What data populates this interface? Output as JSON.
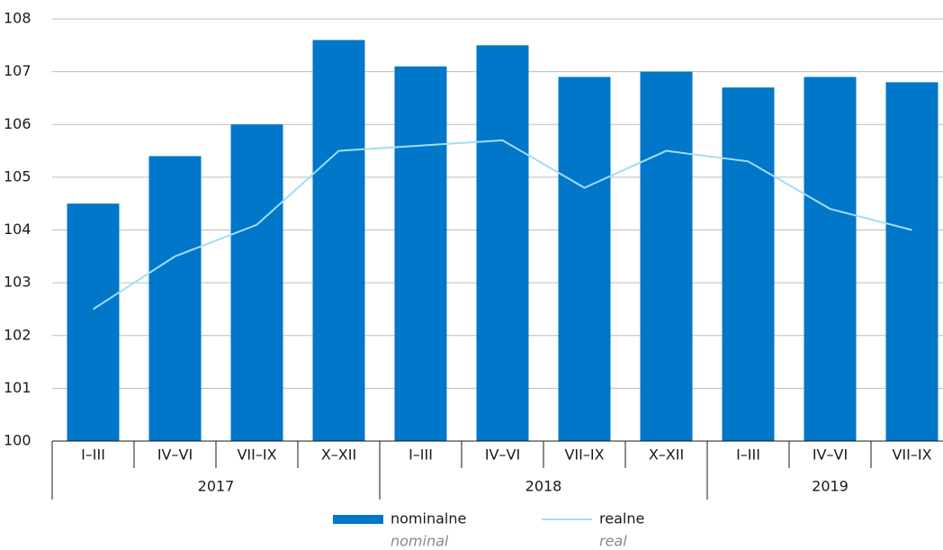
{
  "chart_data": {
    "type": "bar",
    "categories": [
      "I–III",
      "IV–VI",
      "VII–IX",
      "X–XII",
      "I–III",
      "IV–VI",
      "VII–IX",
      "X–XII",
      "I–III",
      "IV–VI",
      "VII–IX"
    ],
    "groups": [
      {
        "label": "2017",
        "span": 4
      },
      {
        "label": "2018",
        "span": 4
      },
      {
        "label": "2019",
        "span": 3
      }
    ],
    "series": [
      {
        "name": "nominalne",
        "name_en": "nominal",
        "type": "bar",
        "color": "#0077c8",
        "values": [
          104.5,
          105.4,
          106.0,
          107.6,
          107.1,
          107.5,
          106.9,
          107.0,
          106.7,
          106.9,
          106.8
        ]
      },
      {
        "name": "realne",
        "name_en": "real",
        "type": "line",
        "color": "#a3dcf5",
        "values": [
          102.5,
          103.5,
          104.1,
          105.5,
          105.6,
          105.7,
          104.8,
          105.5,
          105.3,
          104.4,
          104.0
        ]
      }
    ],
    "ylim": [
      100,
      108
    ],
    "yticks": [
      100,
      101,
      102,
      103,
      104,
      105,
      106,
      107,
      108
    ],
    "grid": true
  }
}
